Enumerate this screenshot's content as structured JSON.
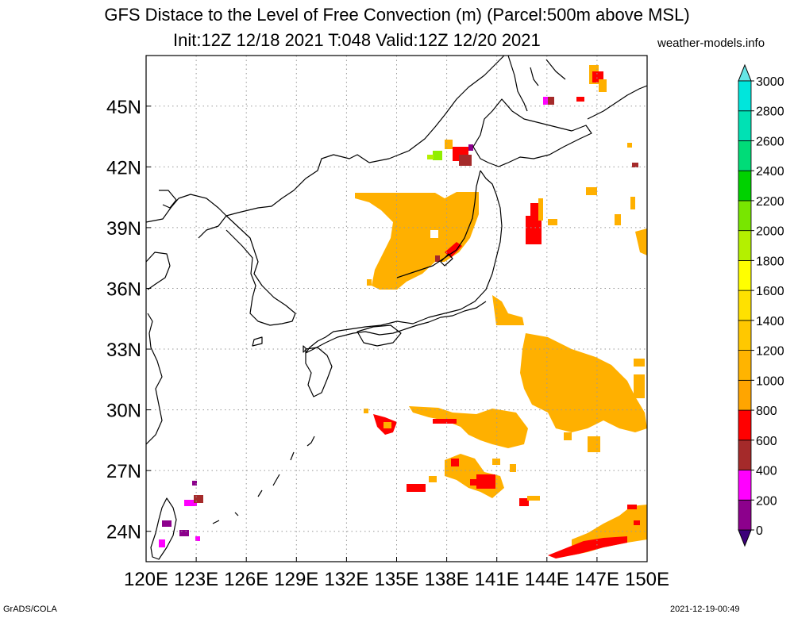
{
  "title": "GFS Distace to the Level of Free Convection (m) (Parcel:500m above MSL)",
  "subtitle": "Init:12Z 12/18 2021 T:048 Valid:12Z 12/20 2021",
  "site": "weather-models.info",
  "footer_left": "GrADS/COLA",
  "footer_right": "2021-12-19-00:49",
  "map": {
    "lon_range": [
      120,
      150
    ],
    "lat_range": [
      22.5,
      47.5
    ],
    "lon_ticks": [
      120,
      123,
      126,
      129,
      132,
      135,
      138,
      141,
      144,
      147,
      150
    ],
    "lon_labels": [
      "120E",
      "123E",
      "126E",
      "129E",
      "132E",
      "135E",
      "138E",
      "141E",
      "144E",
      "147E",
      "150E"
    ],
    "lat_ticks": [
      24,
      27,
      30,
      33,
      36,
      39,
      42,
      45
    ],
    "lat_labels": [
      "24N",
      "27N",
      "30N",
      "33N",
      "36N",
      "39N",
      "42N",
      "45N"
    ],
    "grid": "dotted"
  },
  "colorbar": {
    "levels": [
      0,
      200,
      400,
      600,
      800,
      1000,
      1200,
      1400,
      1600,
      1800,
      2000,
      2200,
      2400,
      2600,
      2800,
      3000
    ],
    "labels": [
      "0",
      "200",
      "400",
      "600",
      "800",
      "1000",
      "1200",
      "1400",
      "1600",
      "1800",
      "2000",
      "2200",
      "2400",
      "2600",
      "2800",
      "3000"
    ],
    "colors": [
      "#8c008c",
      "#ff00ff",
      "#a52a2a",
      "#ff0000",
      "#ffa500",
      "#ffb400",
      "#ffc800",
      "#ffe100",
      "#ffff00",
      "#b4f000",
      "#78e600",
      "#00d200",
      "#00dc78",
      "#00e1b4",
      "#00e6dc",
      "#00f0f0"
    ],
    "under_color": "#3c007a",
    "over_color": "#66e6e6"
  }
}
